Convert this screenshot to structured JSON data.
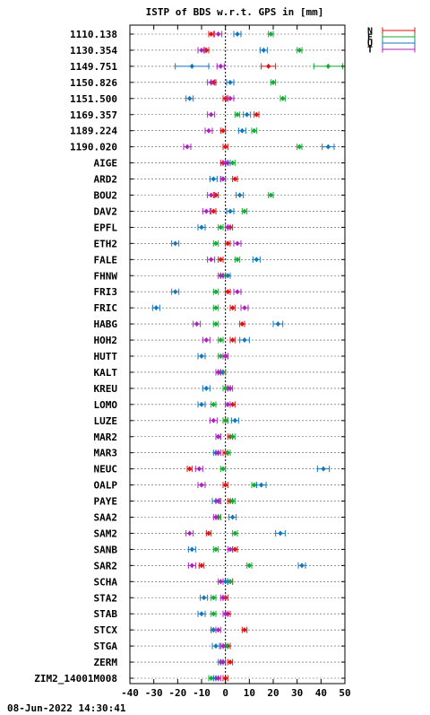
{
  "footer": {
    "timestamp": "08-Jun-2022 14:30:41"
  },
  "chart_data": {
    "type": "scatter",
    "title": "ISTP of BDS w.r.t. GPS in [mm]",
    "xlabel": "",
    "ylabel": "",
    "xlim": [
      -40,
      50
    ],
    "xticks": [
      -40,
      -30,
      -20,
      -10,
      0,
      10,
      20,
      30,
      40,
      50
    ],
    "grid": true,
    "legend_position": "top-right",
    "categories": [
      "1110.138",
      "1130.354",
      "1149.751",
      "1150.826",
      "1151.500",
      "1169.357",
      "1189.224",
      "1190.020",
      "AIGE",
      "ARD2",
      "BOU2",
      "DAV2",
      "EPFL",
      "ETH2",
      "FALE",
      "FHNW",
      "FRI3",
      "FRIC",
      "HABG",
      "HOH2",
      "HUTT",
      "KALT",
      "KREU",
      "LOMO",
      "LUZE",
      "MAR2",
      "MAR3",
      "NEUC",
      "OALP",
      "PAYE",
      "SAA2",
      "SAM2",
      "SANB",
      "SAR2",
      "SCHA",
      "STA2",
      "STAB",
      "STCX",
      "STGA",
      "ZERM",
      "ZIM2_14001M008"
    ],
    "series": [
      {
        "name": "N",
        "color": "#dd1111",
        "values": [
          -6,
          -8,
          18,
          -5,
          0,
          13,
          -1,
          0,
          -1,
          4,
          -4,
          -5,
          2,
          1,
          -2,
          -1,
          1,
          3,
          7,
          3,
          0,
          -1,
          1,
          3,
          0,
          2,
          0,
          -15,
          0,
          2,
          -3,
          -7,
          4,
          -10,
          2,
          0,
          1,
          8,
          1,
          2,
          0
        ],
        "errors": [
          1,
          1,
          3,
          1,
          1,
          1,
          1,
          1,
          1,
          1,
          1,
          1,
          1,
          1,
          1,
          1,
          1,
          1,
          1,
          1,
          1,
          1,
          1,
          1,
          1,
          1,
          1,
          1,
          1,
          1,
          1,
          1,
          1,
          1,
          1,
          1,
          1,
          1,
          1,
          1,
          1
        ]
      },
      {
        "name": "E",
        "color": "#11aa33",
        "values": [
          19,
          31,
          43,
          20,
          24,
          5,
          12,
          31,
          3,
          -1,
          19,
          8,
          -2,
          -4,
          5,
          -1,
          -4,
          -4,
          -4,
          -2,
          -2,
          -1,
          0,
          -5,
          0,
          3,
          1,
          -1,
          12,
          3,
          -3,
          4,
          -4,
          10,
          2,
          -5,
          -5,
          -5,
          0,
          -1,
          -6
        ],
        "errors": [
          1,
          1,
          6,
          1,
          1,
          1,
          1,
          1,
          1,
          1,
          1,
          1,
          1,
          1,
          1,
          1,
          1,
          1,
          1,
          1,
          1,
          1,
          1,
          1,
          1,
          1,
          1,
          1,
          1,
          1,
          1,
          1,
          1,
          1,
          1,
          1,
          1,
          1,
          1,
          1,
          1
        ]
      },
      {
        "name": "U",
        "color": "#1177bb",
        "values": [
          5,
          16,
          -14,
          2,
          -15,
          9,
          7,
          43,
          1,
          -5,
          6,
          2,
          -10,
          -21,
          13,
          1,
          -21,
          -29,
          22,
          8,
          -10,
          -2,
          -8,
          -10,
          4,
          -3,
          -4,
          41,
          15,
          -4,
          3,
          23,
          -14,
          32,
          0,
          -9,
          -10,
          -5,
          -4,
          -2,
          -4
        ],
        "errors": [
          1.5,
          1.5,
          7,
          1.5,
          1.5,
          1.5,
          1.5,
          2.5,
          1,
          1.5,
          1.5,
          1.5,
          1.5,
          1.5,
          1.5,
          1,
          1.5,
          1.5,
          2,
          2,
          1.5,
          1,
          1.5,
          1.5,
          1.5,
          1,
          1,
          2.5,
          2,
          1.5,
          1.5,
          2,
          1.5,
          1.5,
          1,
          1.5,
          1.5,
          1,
          1.5,
          1,
          1
        ]
      },
      {
        "name": "T",
        "color": "#aa22bb",
        "values": [
          -3,
          -10,
          -2,
          -6,
          2,
          -6,
          -7,
          -16,
          0,
          -1,
          -6,
          -8,
          1,
          5,
          -6,
          -2,
          5,
          8,
          -12,
          -8,
          0,
          -3,
          2,
          1,
          -5,
          -3,
          -3,
          -11,
          -10,
          -3,
          -4,
          -15,
          2,
          -14,
          -2,
          -1,
          0,
          -3,
          -1,
          -1,
          -3
        ],
        "errors": [
          1.5,
          1.5,
          1.5,
          1.5,
          1.5,
          1.5,
          1.5,
          1.5,
          1,
          1,
          1.5,
          1.5,
          1,
          1.5,
          1.5,
          1,
          1.5,
          1.5,
          1.5,
          1.5,
          1,
          1,
          1,
          1,
          1.5,
          1,
          1,
          1.5,
          1.5,
          1,
          1,
          1.5,
          1,
          1.5,
          1,
          1,
          1,
          1,
          1,
          1,
          1
        ]
      }
    ]
  }
}
